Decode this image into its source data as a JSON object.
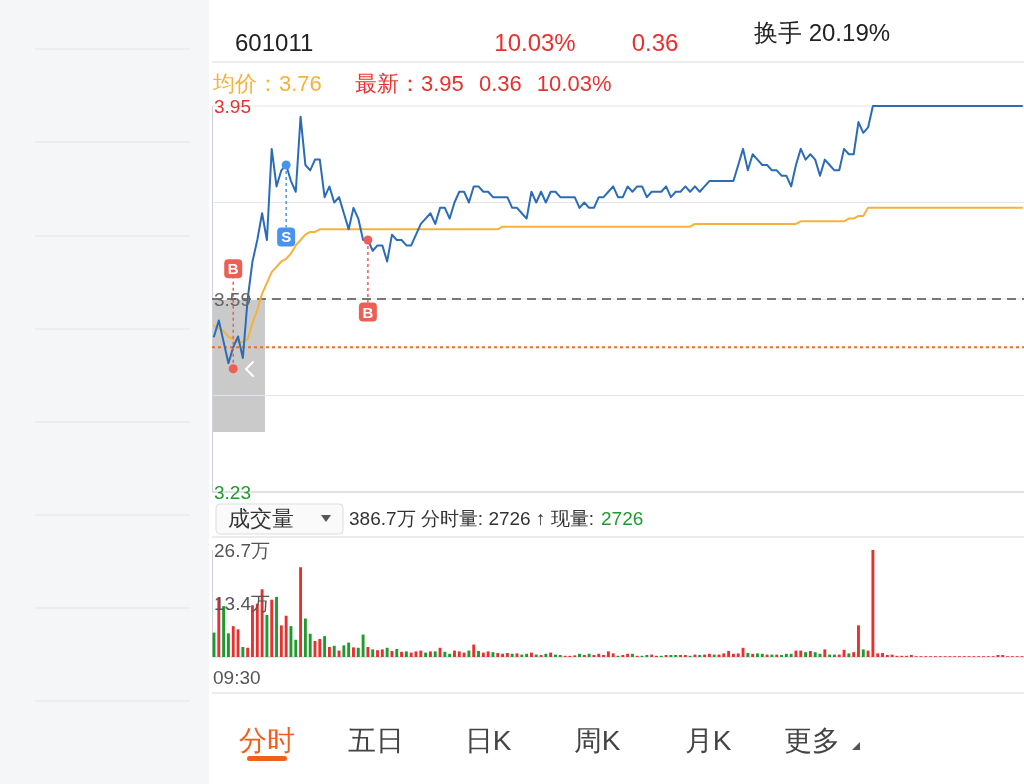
{
  "chart_data": [
    {
      "type": "other",
      "annotations": [
        "601011",
        "10.03%",
        "0.36",
        "换手 20.19%"
      ]
    },
    {
      "type": "line",
      "legend": "top left",
      "grid": "y",
      "tick_labels": "y",
      "annotations": [
        "最新：3.95 0.36 10.03%"
      ],
      "categories": [
        null,
        null,
        null,
        null,
        null,
        null,
        null,
        null,
        null,
        null,
        null,
        null,
        null,
        null,
        null,
        null,
        null,
        null,
        null,
        null,
        null,
        null,
        null,
        null,
        null,
        null,
        null,
        null,
        null,
        null,
        null,
        null,
        null,
        null,
        null,
        null,
        null,
        null,
        null,
        null,
        null,
        null,
        null,
        null,
        null,
        null,
        null,
        null,
        null,
        null,
        null,
        null,
        null,
        null,
        null,
        null,
        null,
        null,
        null,
        null,
        null,
        null,
        null,
        null,
        null,
        null,
        null,
        null,
        null,
        null,
        null,
        null,
        null,
        null,
        null,
        null,
        null,
        null,
        null,
        null,
        null,
        null,
        null,
        null,
        null,
        null,
        null,
        null,
        null,
        null,
        null,
        null,
        null,
        null,
        null,
        null,
        null,
        null,
        null,
        null,
        null,
        null,
        null,
        null,
        null,
        null,
        null,
        null,
        null,
        null,
        null,
        null,
        null,
        null,
        null,
        null,
        null,
        null,
        null,
        null,
        null,
        null,
        null,
        null,
        null,
        null,
        null,
        null,
        null,
        null,
        null,
        null,
        null,
        null,
        null,
        null,
        null,
        null,
        null,
        null,
        null,
        null,
        null,
        null,
        null,
        null,
        null,
        null,
        null,
        null,
        null,
        null,
        null,
        null,
        null,
        null,
        null,
        null,
        null,
        null,
        null,
        null,
        null,
        null,
        null,
        null,
        null,
        null,
        null
      ],
      "ylim": [
        3.23,
        3.95
      ],
      "yticks": [
        3.23,
        {
          "value": 3.41,
          "label": null
        },
        3.59,
        {
          "value": 3.77,
          "label": null
        },
        3.95
      ],
      "ref_lines": [
        {
          "axis": "y",
          "value": 3.59,
          "color": "#777777",
          "line_style": "dashed"
        },
        {
          "axis": "y",
          "value": 3.5,
          "color": "#e8702a",
          "line_style": "dotted"
        }
      ],
      "series": [
        {
          "name": "均价：3.76",
          "color": "#f5b23a",
          "values": [
            3.54,
            3.535,
            3.53,
            3.52,
            3.515,
            3.51,
            3.51,
            3.515,
            3.545,
            3.57,
            3.6,
            3.62,
            3.64,
            3.65,
            3.66,
            3.665,
            3.675,
            3.69,
            3.7,
            3.71,
            3.715,
            3.715,
            3.72,
            3.72,
            3.72,
            3.72,
            3.72,
            3.72,
            3.72,
            3.72,
            3.72,
            3.72,
            3.72,
            3.72,
            3.72,
            3.72,
            3.72,
            3.72,
            3.72,
            3.72,
            3.72,
            3.72,
            3.72,
            3.72,
            3.72,
            3.72,
            3.72,
            3.72,
            3.72,
            3.72,
            3.72,
            3.72,
            3.72,
            3.72,
            3.72,
            3.72,
            3.72,
            3.72,
            3.72,
            3.72,
            3.725,
            3.725,
            3.725,
            3.725,
            3.725,
            3.725,
            3.725,
            3.725,
            3.725,
            3.725,
            3.725,
            3.725,
            3.725,
            3.725,
            3.725,
            3.725,
            3.725,
            3.725,
            3.725,
            3.725,
            3.725,
            3.725,
            3.725,
            3.725,
            3.725,
            3.725,
            3.725,
            3.725,
            3.725,
            3.725,
            3.725,
            3.725,
            3.725,
            3.725,
            3.725,
            3.725,
            3.725,
            3.725,
            3.725,
            3.725,
            3.73,
            3.73,
            3.73,
            3.73,
            3.73,
            3.73,
            3.73,
            3.73,
            3.73,
            3.73,
            3.73,
            3.73,
            3.73,
            3.73,
            3.73,
            3.73,
            3.73,
            3.73,
            3.73,
            3.73,
            3.73,
            3.73,
            3.735,
            3.735,
            3.735,
            3.735,
            3.735,
            3.735,
            3.735,
            3.735,
            3.735,
            3.735,
            3.74,
            3.74,
            3.745,
            3.745,
            3.76,
            3.76,
            3.76,
            3.76,
            3.76,
            3.76,
            3.76,
            3.76,
            3.76,
            3.76,
            3.76,
            3.76,
            3.76,
            3.76,
            3.76,
            3.76,
            3.76,
            3.76,
            3.76,
            3.76,
            3.76,
            3.76,
            3.76,
            3.76,
            3.76,
            3.76,
            3.76,
            3.76,
            3.76,
            3.76,
            3.76,
            3.76,
            3.76
          ]
        },
        {
          "color": "#2b6cb8",
          "values": [
            3.52,
            3.55,
            3.51,
            3.47,
            3.5,
            3.52,
            3.48,
            3.59,
            3.66,
            3.7,
            3.75,
            3.7,
            3.87,
            3.8,
            3.83,
            3.84,
            3.81,
            3.79,
            3.93,
            3.84,
            3.83,
            3.85,
            3.85,
            3.78,
            3.8,
            3.77,
            3.78,
            3.75,
            3.72,
            3.76,
            3.74,
            3.7,
            3.7,
            3.68,
            3.69,
            3.69,
            3.66,
            3.71,
            3.7,
            3.7,
            3.69,
            3.69,
            3.71,
            3.73,
            3.74,
            3.75,
            3.73,
            3.76,
            3.76,
            3.74,
            3.77,
            3.79,
            3.79,
            3.77,
            3.8,
            3.8,
            3.79,
            3.79,
            3.78,
            3.78,
            3.78,
            3.78,
            3.76,
            3.76,
            3.75,
            3.74,
            3.79,
            3.77,
            3.79,
            3.77,
            3.79,
            3.79,
            3.78,
            3.78,
            3.78,
            3.78,
            3.76,
            3.77,
            3.76,
            3.76,
            3.78,
            3.78,
            3.79,
            3.8,
            3.78,
            3.78,
            3.8,
            3.79,
            3.8,
            3.8,
            3.78,
            3.79,
            3.79,
            3.79,
            3.8,
            3.78,
            3.79,
            3.79,
            3.8,
            3.79,
            3.8,
            3.79,
            3.8,
            3.81,
            3.81,
            3.81,
            3.81,
            3.81,
            3.81,
            3.84,
            3.87,
            3.83,
            3.86,
            3.85,
            3.84,
            3.84,
            3.83,
            3.83,
            3.82,
            3.82,
            3.8,
            3.84,
            3.87,
            3.85,
            3.86,
            3.85,
            3.82,
            3.85,
            3.84,
            3.83,
            3.83,
            3.87,
            3.86,
            3.86,
            3.92,
            3.9,
            3.91,
            3.95,
            3.95,
            3.95,
            3.95,
            3.95,
            3.95,
            3.95,
            3.95,
            3.95,
            3.95,
            3.95,
            3.95,
            3.95,
            3.95,
            3.95,
            3.95,
            3.95,
            3.95,
            3.95,
            3.95,
            3.95,
            3.95,
            3.95,
            3.95,
            3.95,
            3.95,
            3.95,
            3.95,
            3.95,
            3.95,
            3.95,
            3.95
          ]
        },
        {
          "name": "S",
          "type": "scatter",
          "marker": "circle",
          "color": "#4a93ec",
          "values": [
            null,
            null,
            null,
            null,
            null,
            null,
            null,
            null,
            null,
            null,
            null,
            null,
            null,
            null,
            null,
            3.84,
            null,
            null,
            null,
            null,
            null,
            null,
            null,
            null,
            null,
            null,
            null,
            null,
            null,
            null,
            null,
            null,
            null,
            null,
            null,
            null,
            null,
            null,
            null,
            null,
            null,
            null,
            null,
            null,
            null,
            null,
            null,
            null,
            null,
            null,
            null,
            null,
            null,
            null,
            null,
            null,
            null,
            null,
            null,
            null,
            null,
            null,
            null,
            null,
            null,
            null,
            null,
            null,
            null,
            null,
            null,
            null,
            null,
            null,
            null,
            null,
            null,
            null,
            null,
            null,
            null,
            null,
            null,
            null,
            null,
            null,
            null,
            null,
            null,
            null,
            null,
            null,
            null,
            null,
            null,
            null,
            null,
            null,
            null,
            null,
            null,
            null,
            null,
            null,
            null,
            null,
            null,
            null,
            null,
            null,
            null,
            null,
            null,
            null,
            null,
            null,
            null,
            null,
            null,
            null,
            null,
            null,
            null,
            null,
            null,
            null,
            null,
            null,
            null,
            null,
            null,
            null,
            null,
            null,
            null,
            null,
            null,
            null,
            null,
            null,
            null,
            null,
            null,
            null,
            null,
            null,
            null,
            null,
            null,
            null,
            null,
            null,
            null,
            null,
            null,
            null,
            null,
            null,
            null,
            null,
            null,
            null,
            null,
            null,
            null,
            null,
            null,
            null,
            null
          ]
        },
        {
          "name": "B",
          "type": "scatter",
          "marker": "circle",
          "color": "#ec5f55",
          "values": [
            null,
            null,
            null,
            null,
            3.46,
            null,
            null,
            null,
            null,
            null,
            null,
            null,
            null,
            null,
            null,
            null,
            null,
            null,
            null,
            null,
            null,
            null,
            null,
            null,
            null,
            null,
            null,
            null,
            null,
            null,
            null,
            null,
            3.7,
            null,
            null,
            null,
            null,
            null,
            null,
            null,
            null,
            null,
            null,
            null,
            null,
            null,
            null,
            null,
            null,
            null,
            null,
            null,
            null,
            null,
            null,
            null,
            null,
            null,
            null,
            null,
            null,
            null,
            null,
            null,
            null,
            null,
            null,
            null,
            null,
            null,
            null,
            null,
            null,
            null,
            null,
            null,
            null,
            null,
            null,
            null,
            null,
            null,
            null,
            null,
            null,
            null,
            null,
            null,
            null,
            null,
            null,
            null,
            null,
            null,
            null,
            null,
            null,
            null,
            null,
            null,
            null,
            null,
            null,
            null,
            null,
            null,
            null,
            null,
            null,
            null,
            null,
            null,
            null,
            null,
            null,
            null,
            null,
            null,
            null,
            null,
            null,
            null,
            null,
            null,
            null,
            null,
            null,
            null,
            null,
            null,
            null,
            null,
            null,
            null,
            null,
            null,
            null,
            null,
            null,
            null,
            null,
            null,
            null,
            null,
            null,
            null,
            null,
            null,
            null,
            null,
            null,
            null,
            null,
            null,
            null,
            null,
            null,
            null,
            null,
            null,
            null,
            null,
            null,
            null,
            null,
            null,
            null,
            null,
            null
          ]
        }
      ]
    },
    {
      "type": "other",
      "annotations": [
        "成交量",
        "386.7万 分时量: 2726 ↑ 现量:",
        "2726"
      ]
    },
    {
      "type": "bar",
      "annotations": [
        "09:30"
      ],
      "categories": [
        null,
        null,
        null,
        null,
        null,
        null,
        null,
        null,
        null,
        null,
        null,
        null,
        null,
        null,
        null,
        null,
        null,
        null,
        null,
        null,
        null,
        null,
        null,
        null,
        null,
        null,
        null,
        null,
        null,
        null,
        null,
        null,
        null,
        null,
        null,
        null,
        null,
        null,
        null,
        null,
        null,
        null,
        null,
        null,
        null,
        null,
        null,
        null,
        null,
        null,
        null,
        null,
        null,
        null,
        null,
        null,
        null,
        null,
        null,
        null,
        null,
        null,
        null,
        null,
        null,
        null,
        null,
        null,
        null,
        null,
        null,
        null,
        null,
        null,
        null,
        null,
        null,
        null,
        null,
        null,
        null,
        null,
        null,
        null,
        null,
        null,
        null,
        null,
        null,
        null,
        null,
        null,
        null,
        null,
        null,
        null,
        null,
        null,
        null,
        null,
        null,
        null,
        null,
        null,
        null,
        null,
        null,
        null,
        null,
        null,
        null,
        null,
        null,
        null,
        null,
        null,
        null,
        null,
        null,
        null,
        null,
        null,
        null,
        null,
        null,
        null,
        null,
        null,
        null,
        null,
        null,
        null,
        null,
        null,
        null,
        null,
        null,
        null,
        null,
        null,
        null,
        null,
        null,
        null,
        null,
        null,
        null,
        null,
        null,
        null,
        null,
        null,
        null,
        null,
        null,
        null,
        null,
        null,
        null,
        null,
        null,
        null,
        null,
        null,
        null,
        null,
        null,
        null,
        null
      ],
      "ylim": [
        0,
        26.7
      ],
      "yticks": [
        {
          "value": 13.4,
          "label": "13.4万"
        },
        {
          "value": 26.7,
          "label": "26.7万"
        }
      ],
      "values": [
        6.1,
        14.8,
        12.7,
        5.9,
        7.7,
        6.9,
        2.5,
        2.3,
        12.9,
        13.3,
        16.9,
        10.5,
        14.3,
        15,
        7.9,
        10.3,
        7.7,
        4.3,
        22.4,
        9.6,
        5.8,
        4,
        4.5,
        5.2,
        2.5,
        2.8,
        1.6,
        2.9,
        3.6,
        2.4,
        2.3,
        5.6,
        2.5,
        1.9,
        1.7,
        1.9,
        2.3,
        1.5,
        2,
        1.3,
        1.4,
        1.1,
        1.4,
        1.6,
        1.1,
        1.4,
        1.4,
        2.3,
        1.3,
        0.8,
        1.6,
        1.4,
        1.1,
        1.6,
        3.1,
        1.5,
        1.1,
        1.4,
        1.2,
        1,
        0.8,
        1,
        0.8,
        0.9,
        0.6,
        0.8,
        1.1,
        0.6,
        0.5,
        0.8,
        1.1,
        0.6,
        0.5,
        0.3,
        0.3,
        0.4,
        0.8,
        0.5,
        0.8,
        0.5,
        0.8,
        0.5,
        1.4,
        0.9,
        0.3,
        0.5,
        0.8,
        0.8,
        0.3,
        0.3,
        0.5,
        0.6,
        0.3,
        0.3,
        0.5,
        0.5,
        0.5,
        0.5,
        0.5,
        0.3,
        0.6,
        0.5,
        0.6,
        0.8,
        0.6,
        0.6,
        0.9,
        1.5,
        0.8,
        0.9,
        2.3,
        1,
        0.8,
        0.9,
        0.8,
        0.6,
        0.6,
        0.6,
        0.5,
        0.8,
        0.8,
        1.6,
        1.6,
        1.2,
        1.5,
        1.2,
        0.8,
        1.9,
        0.6,
        0.6,
        0.6,
        1.8,
        0.9,
        1.2,
        7.9,
        1.9,
        1.6,
        26.7,
        0.9,
        1,
        0.5,
        0.6,
        0.3,
        0.3,
        0.3,
        0.5,
        0.2,
        0.2,
        0.2,
        0.2,
        0.2,
        0.2,
        0.2,
        0.2,
        0.2,
        0.2,
        0.2,
        0.2,
        0.2,
        0.2,
        0.2,
        0.2,
        0.2,
        0.5,
        0.5,
        0.2,
        0.2,
        0.2,
        0.2
      ],
      "colors": [
        "#1f9a2c",
        "#e8312f",
        "#1f9a2c",
        "#1f9a2c",
        "#e8312f",
        "#e8312f",
        "#1f9a2c",
        "#e8312f",
        "#e8312f",
        "#e8312f",
        "#e8312f",
        "#1f9a2c",
        "#e8312f",
        "#1f9a2c",
        "#e8312f",
        "#e8312f",
        "#1f9a2c",
        "#1f9a2c",
        "#e8312f",
        "#1f9a2c",
        "#1f9a2c",
        "#e8312f",
        "#e8312f",
        "#1f9a2c",
        "#e8312f",
        "#1f9a2c",
        "#e8312f",
        "#1f9a2c",
        "#1f9a2c",
        "#e8312f",
        "#1f9a2c",
        "#1f9a2c",
        "#e8312f",
        "#1f9a2c",
        "#e8312f",
        "#e8312f",
        "#1f9a2c",
        "#e8312f",
        "#1f9a2c",
        "#e8312f",
        "#1f9a2c",
        "#e8312f",
        "#e8312f",
        "#e8312f",
        "#1f9a2c",
        "#e8312f",
        "#1f9a2c",
        "#e8312f",
        "#1f9a2c",
        "#1f9a2c",
        "#e8312f",
        "#e8312f",
        "#e8312f",
        "#1f9a2c",
        "#e8312f",
        "#1f9a2c",
        "#e8312f",
        "#e8312f",
        "#1f9a2c",
        "#e8312f",
        "#e8312f",
        "#e8312f",
        "#1f9a2c",
        "#e8312f",
        "#1f9a2c",
        "#1f9a2c",
        "#e8312f",
        "#1f9a2c",
        "#e8312f",
        "#1f9a2c",
        "#e8312f",
        "#1f9a2c",
        "#1f9a2c",
        "#e8312f",
        "#e8312f",
        "#e8312f",
        "#1f9a2c",
        "#e8312f",
        "#1f9a2c",
        "#e8312f",
        "#e8312f",
        "#e8312f",
        "#e8312f",
        "#e8312f",
        "#1f9a2c",
        "#e8312f",
        "#e8312f",
        "#1f9a2c",
        "#e8312f",
        "#1f9a2c",
        "#1f9a2c",
        "#e8312f",
        "#e8312f",
        "#1f9a2c",
        "#e8312f",
        "#1f9a2c",
        "#1f9a2c",
        "#e8312f",
        "#e8312f",
        "#1f9a2c",
        "#e8312f",
        "#1f9a2c",
        "#e8312f",
        "#e8312f",
        "#1f9a2c",
        "#e8312f",
        "#e8312f",
        "#e8312f",
        "#e8312f",
        "#e8312f",
        "#e8312f",
        "#1f9a2c",
        "#e8312f",
        "#1f9a2c",
        "#1f9a2c",
        "#e8312f",
        "#1f9a2c",
        "#e8312f",
        "#1f9a2c",
        "#1f9a2c",
        "#1f9a2c",
        "#e8312f",
        "#e8312f",
        "#1f9a2c",
        "#e8312f",
        "#1f9a2c",
        "#1f9a2c",
        "#e8312f",
        "#1f9a2c",
        "#1f9a2c",
        "#e8312f",
        "#e8312f",
        "#1f9a2c",
        "#e8312f",
        "#e8312f",
        "#1f9a2c",
        "#e8312f",
        "#e8312f",
        "#e8312f",
        "#e8312f",
        "#e8312f",
        "#e8312f",
        "#e8312f",
        "#e8312f",
        "#e8312f",
        "#e8312f",
        "#e8312f",
        "#e8312f",
        "#e8312f",
        "#e8312f",
        "#e8312f",
        "#e8312f",
        "#e8312f",
        "#e8312f",
        "#e8312f",
        "#e8312f",
        "#e8312f",
        "#e8312f",
        "#e8312f",
        "#e8312f",
        "#e8312f",
        "#e8312f",
        "#e8312f",
        "#e8312f",
        "#e8312f",
        "#e8312f",
        "#e8312f",
        "#e8312f",
        "#e8312f"
      ]
    },
    {
      "type": "other",
      "annotations": [
        "分时",
        "五日",
        "日K",
        "周K",
        "月K",
        "更多"
      ]
    }
  ]
}
